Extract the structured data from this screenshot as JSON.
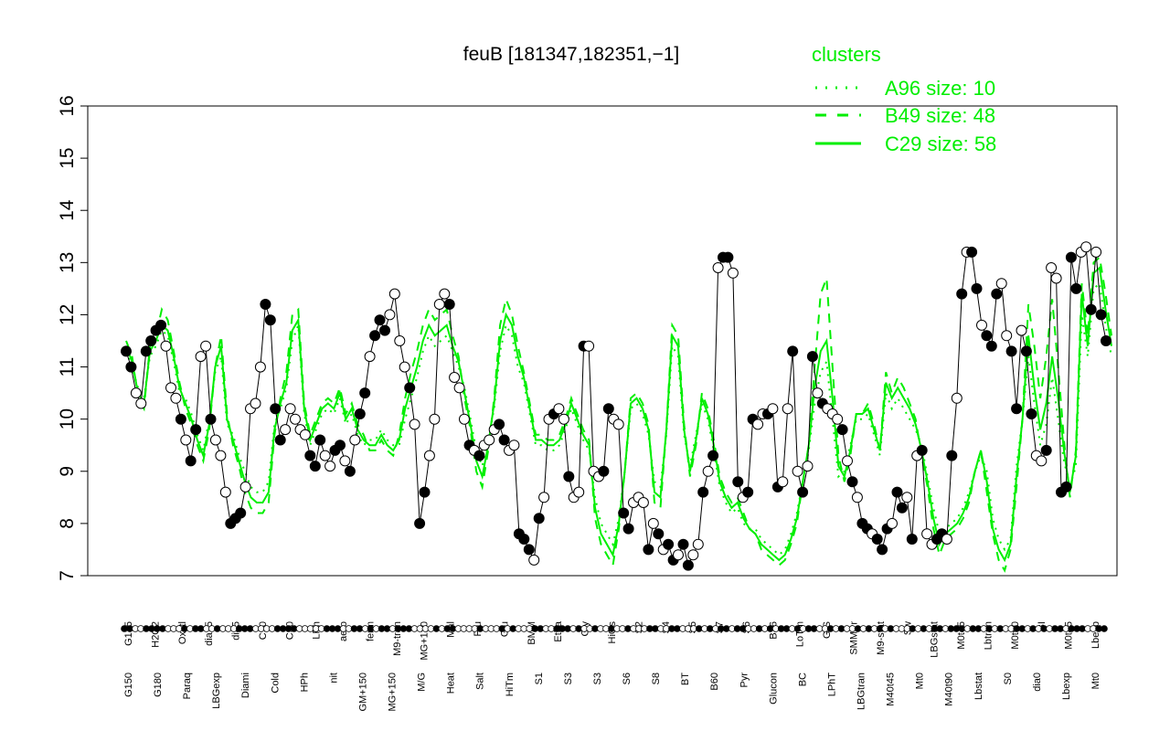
{
  "chart_data": {
    "type": "line",
    "title": "feuB [181347,182351,−1]",
    "xlabel": "",
    "ylabel": "",
    "ylim": [
      7,
      16
    ],
    "yticks": [
      7,
      8,
      9,
      10,
      11,
      12,
      13,
      14,
      15,
      16
    ],
    "grid": false,
    "legend_position": "top-right",
    "colors": {
      "accent": "#00ee00",
      "points": "#000000",
      "frame": "#000000"
    },
    "legend": {
      "title": "clusters",
      "items": [
        {
          "label": "A96 size: 10",
          "style": "dotted"
        },
        {
          "label": "B49 size: 48",
          "style": "dashed"
        },
        {
          "label": "C29 size: 58",
          "style": "solid"
        }
      ]
    },
    "x_labels_bottom": [
      "G150",
      "G180",
      "Paraq",
      "LBGexp",
      "Diami",
      "Cold",
      "HPh",
      "nit",
      "GM+150",
      "MG+150",
      "M/G",
      "Heat",
      "Salt",
      "HiTm",
      "S1",
      "S3",
      "S3",
      "S6",
      "S8",
      "BT",
      "B60",
      "Pyr",
      "Glucon",
      "BC",
      "LPhT",
      "LBGtran",
      "M40t45",
      "Mt0",
      "M40t90",
      "Lbstat",
      "S0",
      "dia0",
      "Lbexp",
      "Mt0"
    ],
    "x_labels_top": [
      "G135",
      "H2O2",
      "Oxctl",
      "dia15",
      "dia5",
      "C90",
      "C30",
      "LPh",
      "aero",
      "ferm",
      "M9-tran",
      "MG+120",
      "Mal",
      "Fru",
      "Glu",
      "BMM",
      "Etha",
      "Gly",
      "HiOs",
      "S2",
      "S4",
      "S5",
      "S7",
      "S6",
      "B36",
      "LoTm",
      "G/S",
      "SMMPr",
      "M9-stat",
      "Sw",
      "LBGstat",
      "M0t45",
      "Lbtran",
      "M0t90",
      "BI",
      "M0t45",
      "Lbexp"
    ],
    "series": [
      {
        "name": "C29 size: 58",
        "style": "solid",
        "values": [
          11.4,
          11.1,
          10.5,
          10.3,
          11.3,
          11.5,
          11.8,
          11.7,
          11.2,
          10.6,
          10.3,
          10.0,
          9.6,
          9.3,
          9.9,
          11.0,
          11.4,
          10.0,
          9.6,
          9.2,
          8.8,
          8.5,
          8.4,
          8.4,
          8.6,
          9.8,
          10.3,
          10.7,
          11.7,
          11.9,
          10.2,
          9.6,
          9.9,
          10.2,
          10.3,
          10.2,
          10.5,
          10.0,
          10.2,
          9.8,
          9.6,
          9.5,
          9.5,
          9.7,
          9.5,
          9.4,
          9.6,
          10.2,
          10.6,
          11.0,
          11.5,
          11.8,
          11.6,
          11.7,
          11.8,
          11.4,
          11.1,
          10.5,
          9.9,
          9.2,
          8.9,
          9.5,
          10.3,
          11.5,
          12.0,
          11.8,
          11.2,
          10.8,
          10.2,
          9.6,
          9.6,
          9.5,
          9.5,
          9.6,
          9.9,
          10.3,
          10.0,
          9.7,
          9.5,
          8.3,
          7.8,
          7.6,
          7.4,
          8.0,
          9.0,
          10.3,
          10.4,
          10.2,
          9.8,
          8.6,
          8.5,
          9.8,
          11.6,
          11.4,
          9.8,
          9.0,
          9.6,
          10.4,
          10.1,
          9.5,
          8.8,
          8.5,
          8.3,
          8.4,
          8.1,
          7.9,
          7.8,
          7.6,
          7.5,
          7.4,
          7.3,
          7.4,
          7.7,
          8.1,
          8.8,
          9.5,
          10.6,
          11.3,
          11.5,
          10.4,
          9.1,
          8.9,
          9.4,
          10.1,
          10.1,
          10.2,
          9.8,
          9.4,
          10.7,
          10.4,
          10.6,
          10.4,
          10.2,
          9.9,
          9.4,
          8.8,
          8.1,
          7.6,
          7.8,
          7.9,
          8.0,
          8.2,
          8.5,
          9.0,
          9.4,
          8.8,
          7.9,
          7.5,
          7.3,
          7.6,
          8.9,
          10.0,
          11.6,
          10.6,
          9.8,
          10.3,
          11.2,
          10.4,
          9.4,
          8.6,
          9.3,
          12.4,
          11.4,
          12.8,
          12.9,
          12.1,
          11.4
        ]
      },
      {
        "name": "B49 size: 48",
        "style": "dashed",
        "values": [
          11.5,
          11.2,
          10.4,
          10.2,
          11.4,
          11.6,
          12.1,
          11.9,
          11.3,
          10.7,
          10.2,
          9.9,
          9.5,
          9.2,
          9.8,
          11.0,
          11.6,
          10.1,
          9.5,
          9.1,
          8.6,
          8.3,
          8.2,
          8.2,
          8.4,
          9.7,
          10.4,
          10.9,
          12.0,
          12.1,
          10.3,
          9.7,
          10.0,
          10.3,
          10.4,
          10.3,
          10.6,
          10.1,
          10.3,
          9.9,
          9.7,
          9.4,
          9.4,
          9.6,
          9.4,
          9.3,
          9.7,
          10.4,
          10.9,
          11.3,
          11.8,
          12.1,
          11.9,
          12.0,
          12.1,
          11.6,
          11.2,
          10.4,
          9.8,
          9.0,
          8.7,
          9.4,
          10.4,
          11.8,
          12.3,
          12.0,
          11.4,
          10.9,
          10.3,
          9.7,
          9.7,
          9.6,
          9.6,
          9.7,
          10.0,
          10.4,
          10.1,
          9.8,
          9.6,
          8.1,
          7.6,
          7.4,
          7.2,
          7.9,
          9.0,
          10.4,
          10.5,
          10.3,
          9.9,
          8.4,
          8.3,
          9.8,
          11.8,
          11.6,
          9.9,
          8.9,
          9.5,
          10.5,
          10.2,
          9.6,
          8.9,
          8.6,
          8.4,
          8.5,
          8.2,
          7.9,
          7.8,
          7.5,
          7.4,
          7.3,
          7.2,
          7.3,
          7.6,
          8.0,
          8.8,
          9.5,
          11.0,
          12.4,
          12.7,
          11.0,
          9.3,
          8.8,
          9.3,
          10.1,
          10.1,
          10.3,
          9.9,
          9.4,
          10.9,
          10.5,
          10.8,
          10.6,
          10.3,
          10.0,
          9.3,
          8.7,
          7.9,
          7.4,
          7.7,
          7.8,
          7.9,
          8.1,
          8.4,
          9.0,
          9.4,
          8.6,
          7.8,
          7.3,
          7.1,
          7.5,
          8.7,
          10.0,
          12.2,
          11.4,
          10.4,
          11.2,
          12.3,
          11.0,
          9.6,
          8.5,
          9.4,
          12.6,
          11.6,
          13.0,
          13.1,
          12.4,
          11.6
        ]
      },
      {
        "name": "A96 size: 10",
        "style": "dotted",
        "values": [
          11.3,
          11.0,
          10.6,
          10.4,
          11.2,
          11.4,
          11.7,
          11.6,
          11.1,
          10.5,
          10.4,
          10.1,
          9.7,
          9.4,
          10.0,
          10.9,
          11.2,
          9.9,
          9.7,
          9.3,
          9.0,
          8.7,
          8.6,
          8.6,
          8.8,
          9.9,
          10.2,
          10.6,
          11.5,
          11.8,
          10.1,
          9.5,
          9.8,
          10.1,
          10.2,
          10.1,
          10.4,
          9.9,
          10.1,
          9.7,
          9.5,
          9.6,
          9.6,
          9.8,
          9.6,
          9.5,
          9.5,
          10.0,
          10.4,
          10.8,
          11.3,
          11.6,
          11.4,
          11.5,
          11.6,
          11.3,
          11.0,
          10.6,
          10.0,
          9.4,
          9.1,
          9.6,
          10.2,
          11.3,
          11.8,
          11.6,
          11.0,
          10.7,
          10.1,
          9.5,
          9.5,
          9.4,
          9.4,
          9.5,
          9.8,
          10.2,
          9.9,
          9.6,
          9.4,
          8.5,
          8.0,
          7.8,
          7.6,
          8.1,
          9.0,
          10.2,
          10.3,
          10.1,
          9.7,
          8.8,
          8.7,
          9.7,
          11.4,
          11.2,
          9.7,
          9.1,
          9.7,
          10.3,
          10.0,
          9.4,
          8.7,
          8.4,
          8.2,
          8.3,
          8.0,
          7.9,
          7.9,
          7.7,
          7.6,
          7.5,
          7.4,
          7.5,
          7.8,
          8.2,
          8.8,
          9.4,
          10.3,
          10.9,
          11.1,
          10.0,
          8.9,
          9.0,
          9.5,
          10.0,
          10.0,
          10.1,
          9.7,
          9.3,
          10.5,
          10.2,
          10.4,
          10.2,
          10.0,
          9.8,
          9.5,
          8.9,
          8.3,
          7.8,
          7.9,
          8.0,
          8.1,
          8.3,
          8.6,
          9.0,
          9.3,
          9.0,
          8.1,
          7.7,
          7.5,
          7.7,
          9.1,
          10.0,
          11.2,
          10.3,
          9.5,
          9.9,
          10.8,
          10.0,
          9.2,
          8.7,
          9.1,
          12.0,
          11.2,
          12.5,
          12.6,
          11.8,
          11.2
        ]
      },
      {
        "name": "points",
        "style": "points",
        "values": [
          11.3,
          11.0,
          10.5,
          10.3,
          11.3,
          11.5,
          11.7,
          11.8,
          11.4,
          10.6,
          10.4,
          10.0,
          9.6,
          9.2,
          9.8,
          11.2,
          11.4,
          10.0,
          9.6,
          9.3,
          8.6,
          8.0,
          8.1,
          8.2,
          8.7,
          10.2,
          10.3,
          11.0,
          12.2,
          11.9,
          10.2,
          9.6,
          9.8,
          10.2,
          10.0,
          9.8,
          9.7,
          9.3,
          9.1,
          9.6,
          9.3,
          9.1,
          9.4,
          9.5,
          9.2,
          9.0,
          9.6,
          10.1,
          10.5,
          11.2,
          11.6,
          11.9,
          11.7,
          12.0,
          12.4,
          11.5,
          11.0,
          10.6,
          9.9,
          8.0,
          8.6,
          9.3,
          10.0,
          12.2,
          12.4,
          12.2,
          10.8,
          10.6,
          10.0,
          9.5,
          9.4,
          9.3,
          9.5,
          9.6,
          9.8,
          9.9,
          9.6,
          9.4,
          9.5,
          7.8,
          7.7,
          7.5,
          7.3,
          8.1,
          8.5,
          10.0,
          10.1,
          10.2,
          10.0,
          8.9,
          8.5,
          8.6,
          11.4,
          11.4,
          9.0,
          8.9,
          9.0,
          10.2,
          10.0,
          9.9,
          8.2,
          7.9,
          8.4,
          8.5,
          8.4,
          7.5,
          8.0,
          7.8,
          7.5,
          7.6,
          7.3,
          7.4,
          7.6,
          7.2,
          7.4,
          7.6,
          8.6,
          9.0,
          9.3,
          12.9,
          13.1,
          13.1,
          12.8,
          8.8,
          8.5,
          8.6,
          10.0,
          9.9,
          10.1,
          10.1,
          10.2,
          8.7,
          8.8,
          10.2,
          11.3,
          9.0,
          8.6,
          9.1,
          11.2,
          10.5,
          10.3,
          10.2,
          10.1,
          10.0,
          9.8,
          9.2,
          8.8,
          8.5,
          8.0,
          7.9,
          7.8,
          7.7,
          7.5,
          7.9,
          8.0,
          8.6,
          8.3,
          8.5,
          7.7,
          9.3,
          9.4,
          7.8,
          7.6,
          7.7,
          7.8,
          7.7,
          9.3,
          10.4,
          12.4,
          13.2,
          13.2,
          12.5,
          11.8,
          11.6,
          11.4,
          12.4,
          12.6,
          11.6,
          11.3,
          10.2,
          11.7,
          11.3,
          10.1,
          9.3,
          9.2,
          9.4,
          12.9,
          12.7,
          8.6,
          8.7,
          13.1,
          12.5,
          13.2,
          13.3,
          12.1,
          13.2,
          12.0,
          11.5
        ],
        "filled_pattern": [
          1,
          1,
          0,
          0,
          1,
          1,
          1,
          1,
          0,
          0,
          0,
          1,
          0,
          1,
          1,
          0,
          0,
          1,
          0,
          0,
          0,
          1,
          1,
          1,
          0,
          0,
          0,
          0,
          1,
          1,
          1,
          1,
          0,
          0,
          0,
          0,
          0,
          1,
          1,
          1,
          0,
          0,
          1,
          1,
          0,
          1,
          0,
          1,
          1,
          0,
          1,
          1,
          1,
          0,
          0,
          0,
          0,
          1,
          0,
          1,
          1,
          0,
          0,
          0,
          0,
          1,
          0,
          0,
          0,
          1,
          0,
          1,
          0,
          0,
          0,
          1,
          1,
          0,
          0,
          1,
          1,
          1,
          0,
          1,
          0,
          0,
          1,
          0,
          0,
          1,
          0,
          0,
          1,
          0,
          0,
          0,
          1,
          1,
          0,
          0,
          1,
          1,
          0,
          0,
          0,
          1,
          0,
          1,
          0,
          1,
          1,
          0,
          1,
          1,
          0,
          0,
          1,
          0,
          1,
          0,
          1,
          1,
          0,
          1,
          0,
          1,
          1,
          0,
          0,
          1,
          0,
          1,
          0,
          0,
          1,
          0,
          1,
          0,
          1,
          0,
          1,
          0,
          0,
          0,
          1,
          0,
          1,
          0,
          1,
          1,
          0,
          1,
          1,
          1,
          0,
          1,
          1,
          0,
          1,
          0,
          1,
          0,
          0,
          1,
          1,
          0,
          1,
          0,
          1,
          0,
          1,
          1,
          0,
          1,
          1,
          1,
          0,
          0,
          1,
          1,
          0,
          1,
          1,
          0,
          0,
          1,
          0,
          0,
          1,
          1,
          1,
          1,
          0,
          0,
          1,
          0,
          1
        ]
      }
    ]
  }
}
